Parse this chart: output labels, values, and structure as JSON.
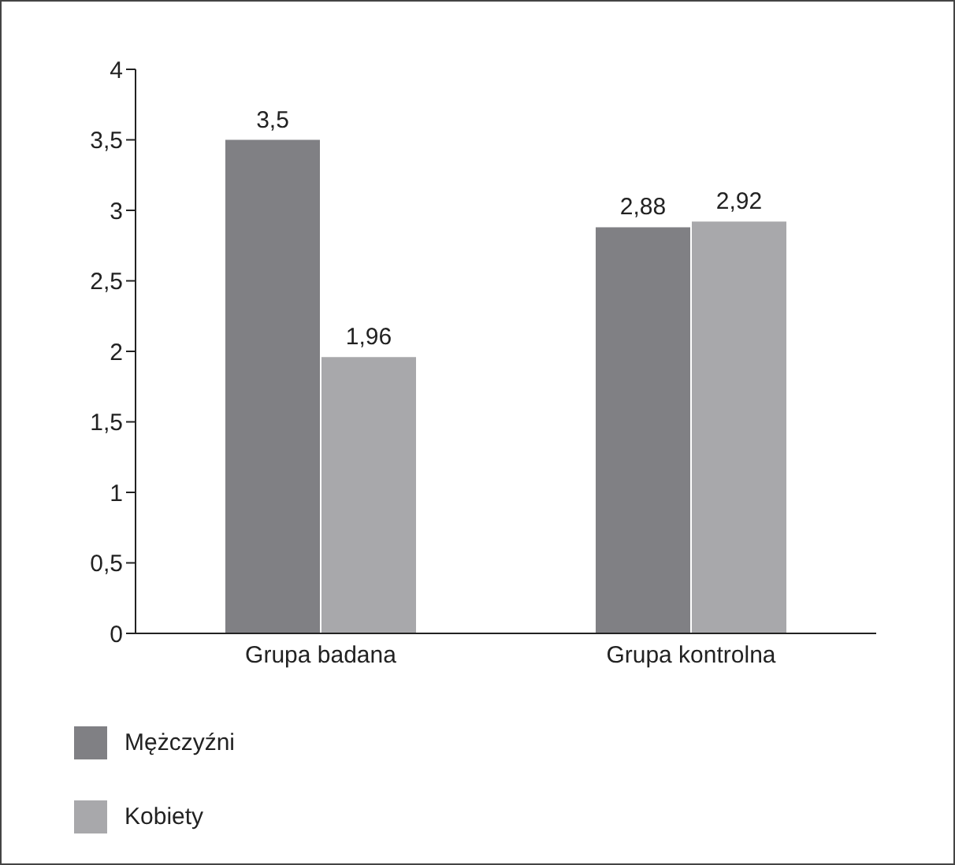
{
  "chart_data": {
    "type": "bar",
    "categories": [
      "Grupa badana",
      "Grupa kontrolna"
    ],
    "series": [
      {
        "name": "Mężczyźni",
        "color": "#808084",
        "values": [
          3.5,
          2.88
        ],
        "value_labels": [
          "3,5",
          "2,88"
        ]
      },
      {
        "name": "Kobiety",
        "color": "#a8a8ab",
        "values": [
          1.96,
          2.92
        ],
        "value_labels": [
          "1,96",
          "2,92"
        ]
      }
    ],
    "ylim": [
      0,
      4
    ],
    "yticks": [
      0,
      {
        "value": 0.5,
        "label": "0,5"
      },
      1,
      {
        "value": 1.5,
        "label": "1,5"
      },
      2,
      {
        "value": 2.5,
        "label": "2,5"
      },
      3,
      {
        "value": 3.5,
        "label": "3,5"
      },
      4
    ],
    "grid": false,
    "legend": "bottom left"
  }
}
